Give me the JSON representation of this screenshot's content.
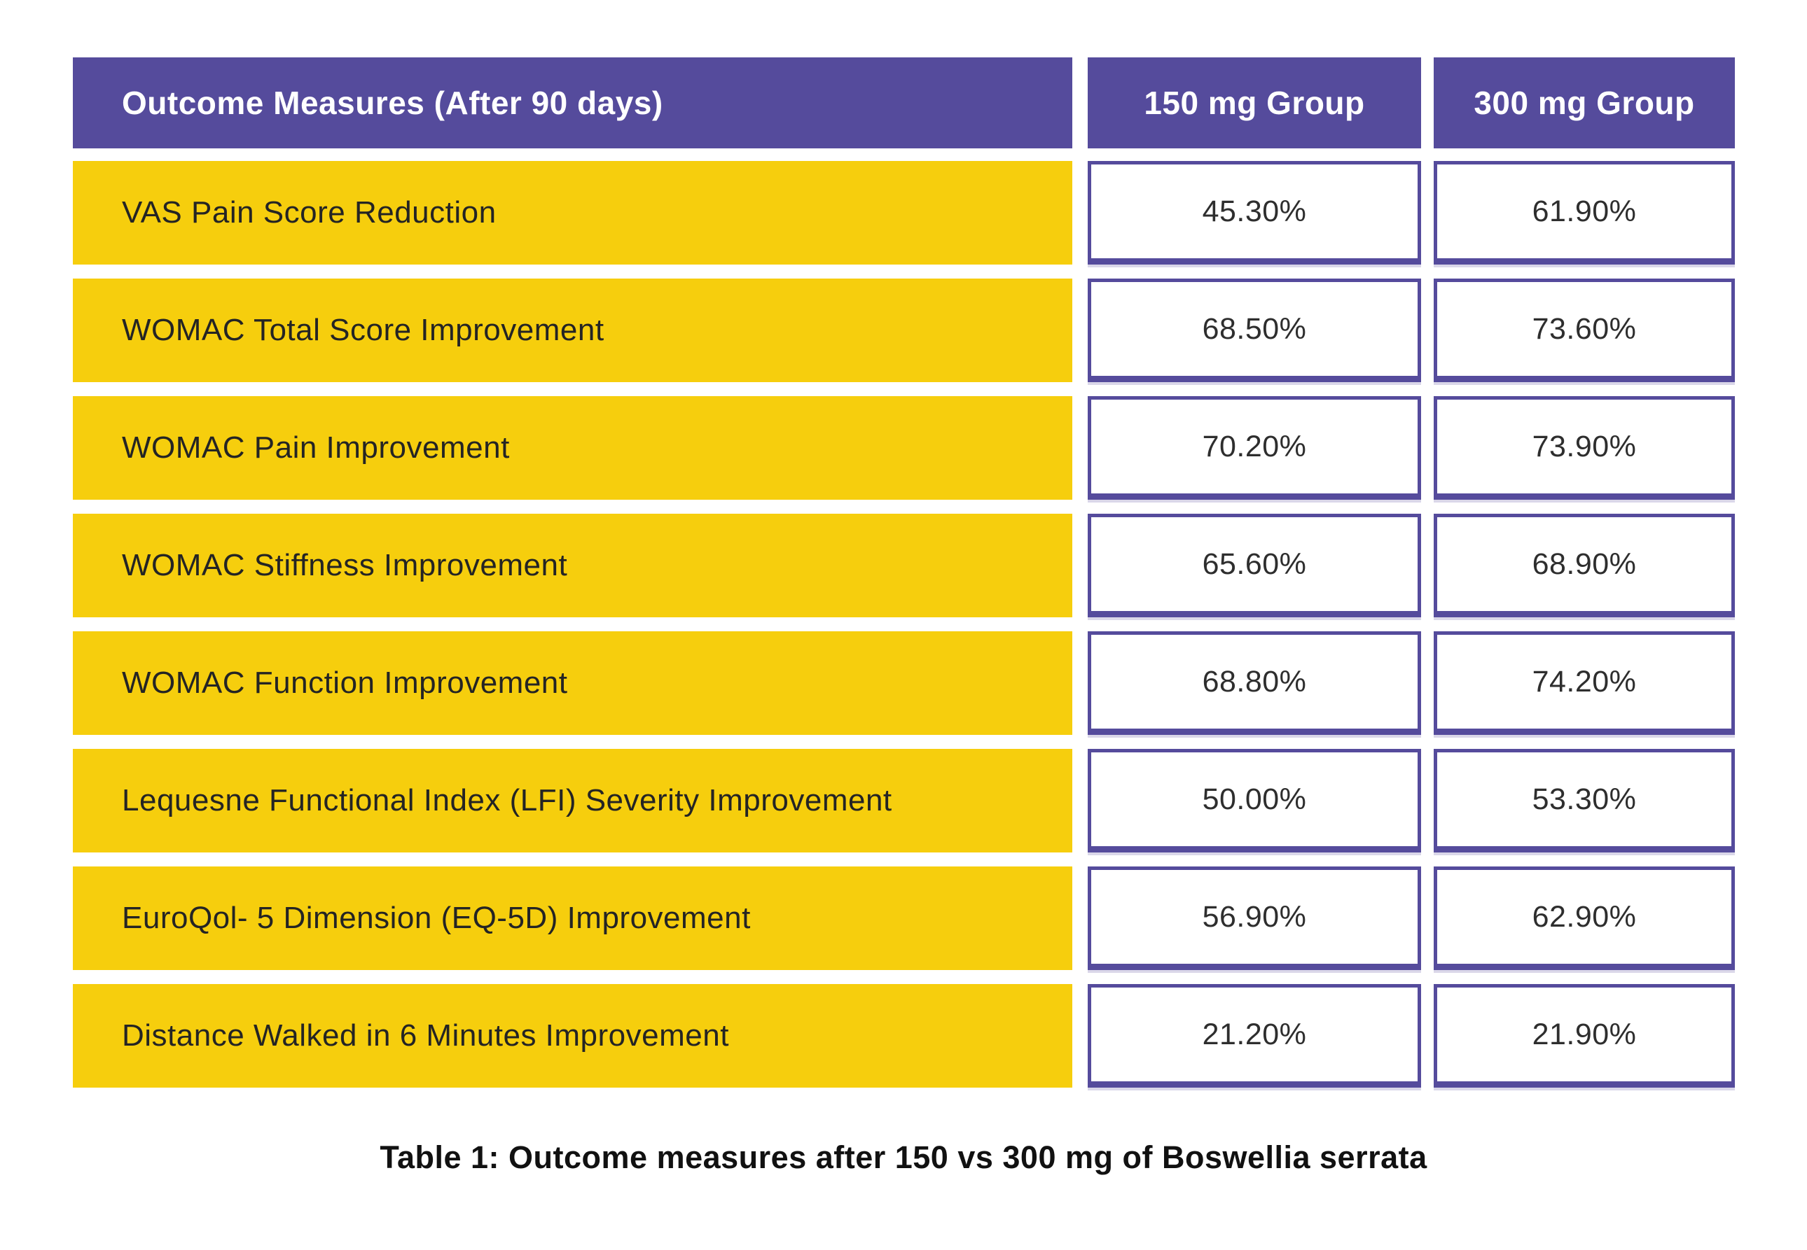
{
  "table": {
    "header": {
      "measure_label": "Outcome Measures (After 90 days)",
      "group1_label": "150 mg Group",
      "group2_label": "300 mg Group"
    },
    "rows": [
      {
        "label": "VAS Pain Score Reduction",
        "group1": "45.30%",
        "group2": "61.90%"
      },
      {
        "label": "WOMAC Total Score Improvement",
        "group1": "68.50%",
        "group2": "73.60%"
      },
      {
        "label": "WOMAC Pain Improvement",
        "group1": "70.20%",
        "group2": "73.90%"
      },
      {
        "label": "WOMAC Stiffness Improvement",
        "group1": "65.60%",
        "group2": "68.90%"
      },
      {
        "label": "WOMAC Function Improvement",
        "group1": "68.80%",
        "group2": "74.20%"
      },
      {
        "label": "Lequesne Functional Index (LFI) Severity Improvement",
        "group1": "50.00%",
        "group2": "53.30%"
      },
      {
        "label": "EuroQol- 5 Dimension (EQ-5D) Improvement",
        "group1": "56.90%",
        "group2": "62.90%"
      },
      {
        "label": "Distance Walked in 6 Minutes Improvement",
        "group1": "21.20%",
        "group2": "21.90%"
      }
    ],
    "caption": "Table 1: Outcome measures after 150 vs 300 mg of Boswellia serrata"
  },
  "colors": {
    "header_purple": "#554B9C",
    "row_yellow": "#F6CE0D",
    "cell_border": "#554B9C",
    "text_dark": "#242424",
    "caption_black": "#111111"
  },
  "chart_data": {
    "type": "table",
    "title": "Table 1: Outcome measures after 150 vs 300 mg of Boswellia serrata",
    "columns": [
      "Outcome Measures (After 90 days)",
      "150 mg Group",
      "300 mg Group"
    ],
    "rows": [
      [
        "VAS Pain Score Reduction",
        "45.30%",
        "61.90%"
      ],
      [
        "WOMAC Total Score Improvement",
        "68.50%",
        "73.60%"
      ],
      [
        "WOMAC Pain Improvement",
        "70.20%",
        "73.90%"
      ],
      [
        "WOMAC Stiffness Improvement",
        "65.60%",
        "68.90%"
      ],
      [
        "WOMAC Function Improvement",
        "68.80%",
        "74.20%"
      ],
      [
        "Lequesne Functional Index (LFI) Severity Improvement",
        "50.00%",
        "53.30%"
      ],
      [
        "EuroQol- 5 Dimension (EQ-5D) Improvement",
        "56.90%",
        "62.90%"
      ],
      [
        "Distance Walked in 6 Minutes Improvement",
        "21.20%",
        "21.90%"
      ]
    ],
    "series": [
      {
        "name": "150 mg Group",
        "values": [
          45.3,
          68.5,
          70.2,
          65.6,
          68.8,
          50.0,
          56.9,
          21.2
        ]
      },
      {
        "name": "300 mg Group",
        "values": [
          61.9,
          73.6,
          73.9,
          68.9,
          74.2,
          53.3,
          62.9,
          21.9
        ]
      }
    ],
    "categories": [
      "VAS Pain Score Reduction",
      "WOMAC Total Score Improvement",
      "WOMAC Pain Improvement",
      "WOMAC Stiffness Improvement",
      "WOMAC Function Improvement",
      "Lequesne Functional Index (LFI) Severity Improvement",
      "EuroQol- 5 Dimension (EQ-5D) Improvement",
      "Distance Walked in 6 Minutes Improvement"
    ],
    "value_unit": "%"
  }
}
